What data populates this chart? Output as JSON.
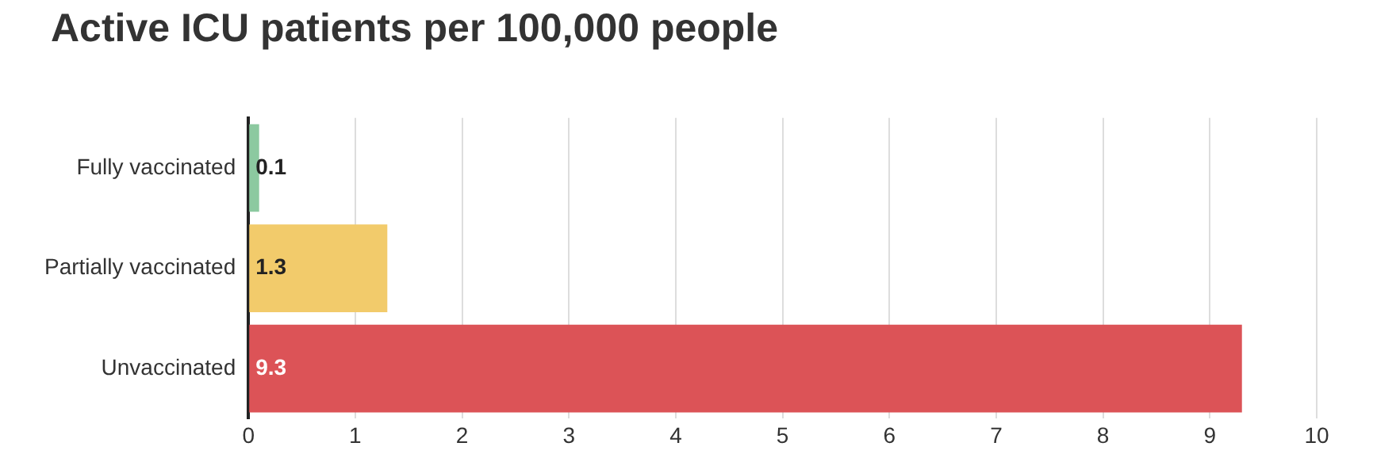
{
  "chart_data": {
    "type": "bar",
    "orientation": "horizontal",
    "title": "Active ICU patients per 100,000 people",
    "categories": [
      "Fully vaccinated",
      "Partially vaccinated",
      "Unvaccinated"
    ],
    "values": [
      0.1,
      1.3,
      9.3
    ],
    "colors": [
      "#8cc9a0",
      "#f2cb6b",
      "#dc5357"
    ],
    "xlim": [
      0,
      10
    ],
    "xticks": [
      0,
      1,
      2,
      3,
      4,
      5,
      6,
      7,
      8,
      9,
      10
    ],
    "grid": "x",
    "data_labels": true,
    "legend": false
  }
}
